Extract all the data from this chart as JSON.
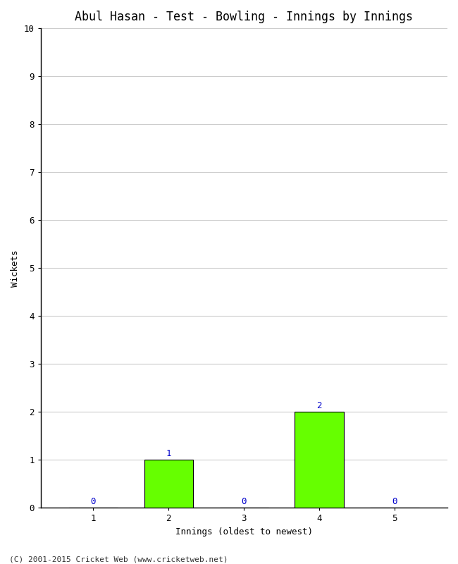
{
  "title": "Abul Hasan - Test - Bowling - Innings by Innings",
  "xlabel": "Innings (oldest to newest)",
  "ylabel": "Wickets",
  "categories": [
    1,
    2,
    3,
    4,
    5
  ],
  "values": [
    0,
    1,
    0,
    2,
    0
  ],
  "bar_color": "#66ff00",
  "bar_edge_color": "#000000",
  "ylim": [
    0,
    10
  ],
  "yticks": [
    0,
    1,
    2,
    3,
    4,
    5,
    6,
    7,
    8,
    9,
    10
  ],
  "xticks": [
    1,
    2,
    3,
    4,
    5
  ],
  "label_color": "#0000cc",
  "background_color": "#ffffff",
  "grid_color": "#cccccc",
  "footer": "(C) 2001-2015 Cricket Web (www.cricketweb.net)",
  "title_fontsize": 12,
  "label_fontsize": 9,
  "tick_fontsize": 9,
  "footer_fontsize": 8,
  "bar_width": 0.65
}
